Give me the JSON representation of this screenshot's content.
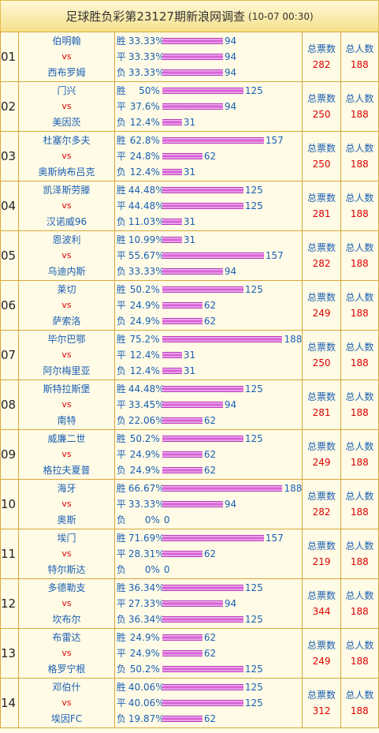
{
  "header": {
    "title": "足球胜负彩第23127期新浪网调查",
    "time": "(10-07 00:30)"
  },
  "labels": {
    "win": "胜",
    "draw": "平",
    "lose": "负",
    "vs": "vs",
    "total_votes": "总票数",
    "total_people": "总人数"
  },
  "bar_scale_per_vote": 0.82,
  "matches": [
    {
      "no": "01",
      "home": "伯明翰",
      "away": "西布罗姆",
      "win_pct": "33.33%",
      "win_cnt": 94,
      "draw_pct": "33.33%",
      "draw_cnt": 94,
      "lose_pct": "33.33%",
      "lose_cnt": 94,
      "total_votes": "282",
      "total_people": "188"
    },
    {
      "no": "02",
      "home": "门兴",
      "away": "美因茨",
      "win_pct": "50%",
      "win_cnt": 125,
      "draw_pct": "37.6%",
      "draw_cnt": 94,
      "lose_pct": "12.4%",
      "lose_cnt": 31,
      "total_votes": "250",
      "total_people": "188"
    },
    {
      "no": "03",
      "home": "杜塞尔多夫",
      "away": "奥斯纳布吕克",
      "win_pct": "62.8%",
      "win_cnt": 157,
      "draw_pct": "24.8%",
      "draw_cnt": 62,
      "lose_pct": "12.4%",
      "lose_cnt": 31,
      "total_votes": "250",
      "total_people": "188"
    },
    {
      "no": "04",
      "home": "凯泽斯劳滕",
      "away": "汉诺威96",
      "win_pct": "44.48%",
      "win_cnt": 125,
      "draw_pct": "44.48%",
      "draw_cnt": 125,
      "lose_pct": "11.03%",
      "lose_cnt": 31,
      "total_votes": "281",
      "total_people": "188"
    },
    {
      "no": "05",
      "home": "恩波利",
      "away": "乌迪内斯",
      "win_pct": "10.99%",
      "win_cnt": 31,
      "draw_pct": "55.67%",
      "draw_cnt": 157,
      "lose_pct": "33.33%",
      "lose_cnt": 94,
      "total_votes": "282",
      "total_people": "188"
    },
    {
      "no": "06",
      "home": "莱切",
      "away": "萨索洛",
      "win_pct": "50.2%",
      "win_cnt": 125,
      "draw_pct": "24.9%",
      "draw_cnt": 62,
      "lose_pct": "24.9%",
      "lose_cnt": 62,
      "total_votes": "249",
      "total_people": "188"
    },
    {
      "no": "07",
      "home": "毕尔巴鄂",
      "away": "阿尔梅里亚",
      "win_pct": "75.2%",
      "win_cnt": 188,
      "draw_pct": "12.4%",
      "draw_cnt": 31,
      "lose_pct": "12.4%",
      "lose_cnt": 31,
      "total_votes": "250",
      "total_people": "188"
    },
    {
      "no": "08",
      "home": "斯特拉斯堡",
      "away": "南特",
      "win_pct": "44.48%",
      "win_cnt": 125,
      "draw_pct": "33.45%",
      "draw_cnt": 94,
      "lose_pct": "22.06%",
      "lose_cnt": 62,
      "total_votes": "281",
      "total_people": "188"
    },
    {
      "no": "09",
      "home": "威廉二世",
      "away": "格拉夫夏普",
      "win_pct": "50.2%",
      "win_cnt": 125,
      "draw_pct": "24.9%",
      "draw_cnt": 62,
      "lose_pct": "24.9%",
      "lose_cnt": 62,
      "total_votes": "249",
      "total_people": "188"
    },
    {
      "no": "10",
      "home": "海牙",
      "away": "奥斯",
      "win_pct": "66.67%",
      "win_cnt": 188,
      "draw_pct": "33.33%",
      "draw_cnt": 94,
      "lose_pct": "0%",
      "lose_cnt": 0,
      "total_votes": "282",
      "total_people": "188"
    },
    {
      "no": "11",
      "home": "埃门",
      "away": "特尔斯达",
      "win_pct": "71.69%",
      "win_cnt": 157,
      "draw_pct": "28.31%",
      "draw_cnt": 62,
      "lose_pct": "0%",
      "lose_cnt": 0,
      "total_votes": "219",
      "total_people": "188"
    },
    {
      "no": "12",
      "home": "多德勒支",
      "away": "坎布尔",
      "win_pct": "36.34%",
      "win_cnt": 125,
      "draw_pct": "27.33%",
      "draw_cnt": 94,
      "lose_pct": "36.34%",
      "lose_cnt": 125,
      "total_votes": "344",
      "total_people": "188"
    },
    {
      "no": "13",
      "home": "布雷达",
      "away": "格罗宁根",
      "win_pct": "24.9%",
      "win_cnt": 62,
      "draw_pct": "24.9%",
      "draw_cnt": 62,
      "lose_pct": "50.2%",
      "lose_cnt": 125,
      "total_votes": "249",
      "total_people": "188"
    },
    {
      "no": "14",
      "home": "邓伯什",
      "away": "埃因FC",
      "win_pct": "40.06%",
      "win_cnt": 125,
      "draw_pct": "40.06%",
      "draw_cnt": 125,
      "lose_pct": "19.87%",
      "lose_cnt": 62,
      "total_votes": "312",
      "total_people": "188"
    }
  ]
}
